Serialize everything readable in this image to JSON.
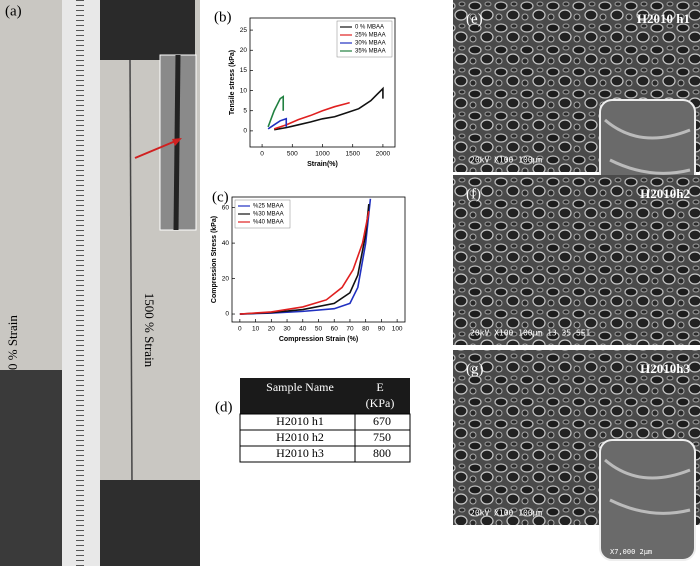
{
  "photo": {
    "label": "(a)",
    "left_text": "0 % Strain",
    "center_text": "1500 % Strain"
  },
  "chart_data": [
    {
      "type": "line",
      "label": "(b)",
      "xlabel": "Strain(%)",
      "ylabel": "Tensile stress (kPa)",
      "xlim": [
        -200,
        2200
      ],
      "xticks": [
        0,
        500,
        1000,
        1500,
        2000
      ],
      "ylim": [
        -4,
        28
      ],
      "yticks": [
        0,
        5,
        10,
        15,
        20,
        25
      ],
      "legend": "upper right",
      "series": [
        {
          "name": "0 % MBAA",
          "color": "#111111",
          "x": [
            200,
            400,
            600,
            800,
            1000,
            1200,
            1400,
            1600,
            1800,
            1900,
            2000,
            2000
          ],
          "values": [
            0.3,
            0.8,
            1.5,
            2.2,
            3.0,
            3.5,
            4.5,
            5.5,
            7.5,
            9,
            10.5,
            8
          ]
        },
        {
          "name": "25% MBAA",
          "color": "#e02020",
          "x": [
            200,
            400,
            600,
            800,
            1000,
            1200,
            1400,
            1450
          ],
          "values": [
            0.5,
            1.5,
            2.8,
            3.8,
            5,
            6,
            6.8,
            7
          ]
        },
        {
          "name": "30% MBAA",
          "color": "#2030c0",
          "x": [
            100,
            200,
            300,
            400,
            400
          ],
          "values": [
            0.5,
            1.5,
            2.5,
            3,
            1
          ]
        },
        {
          "name": "35% MBAA",
          "color": "#208040",
          "x": [
            100,
            150,
            200,
            250,
            300,
            350,
            350
          ],
          "values": [
            1,
            3,
            5,
            6.5,
            8,
            8.5,
            5
          ]
        }
      ]
    },
    {
      "type": "line",
      "label": "(c)",
      "xlabel": "Compression Strain (%)",
      "ylabel": "Compression Stress (kPa)",
      "xlim": [
        -5,
        105
      ],
      "xticks": [
        0,
        10,
        20,
        30,
        40,
        50,
        60,
        70,
        80,
        90,
        100
      ],
      "ylim": [
        -4.5,
        66
      ],
      "yticks": [
        0,
        20,
        40,
        60
      ],
      "legend": "upper left",
      "series": [
        {
          "name": "%25 MBAA",
          "color": "#2030c0",
          "x": [
            0,
            20,
            40,
            60,
            70,
            75,
            80,
            83
          ],
          "values": [
            0,
            0.5,
            1.5,
            3,
            6,
            15,
            40,
            65
          ]
        },
        {
          "name": "%30 MBAA",
          "color": "#111111",
          "x": [
            0,
            20,
            40,
            60,
            70,
            75,
            80,
            82
          ],
          "values": [
            0,
            0.8,
            2.5,
            6,
            12,
            22,
            45,
            62
          ]
        },
        {
          "name": "%40 MBAA",
          "color": "#e02020",
          "x": [
            0,
            20,
            40,
            55,
            65,
            72,
            78,
            82
          ],
          "values": [
            0,
            1.2,
            4,
            8,
            15,
            25,
            40,
            58
          ]
        }
      ]
    }
  ],
  "table": {
    "label": "(d)",
    "header": [
      "Sample Name",
      "E",
      "(KPa)"
    ],
    "rows": [
      [
        "H2010 h1",
        "670"
      ],
      [
        "H2010 h2",
        "750"
      ],
      [
        "H2010 h3",
        "800"
      ]
    ]
  },
  "sem": [
    {
      "label": "(e)",
      "title": "H2010 h1",
      "info": "20kV   X100  100μm",
      "inset": "X6,000   2μm"
    },
    {
      "label": "(f)",
      "title": "H2010h2",
      "info": "20kV   X100  100μm      13 35 SEI"
    },
    {
      "label": "(g)",
      "title": "H2010h3",
      "info": "20kV   X100  100μm",
      "inset": "X7,000   2μm"
    }
  ]
}
